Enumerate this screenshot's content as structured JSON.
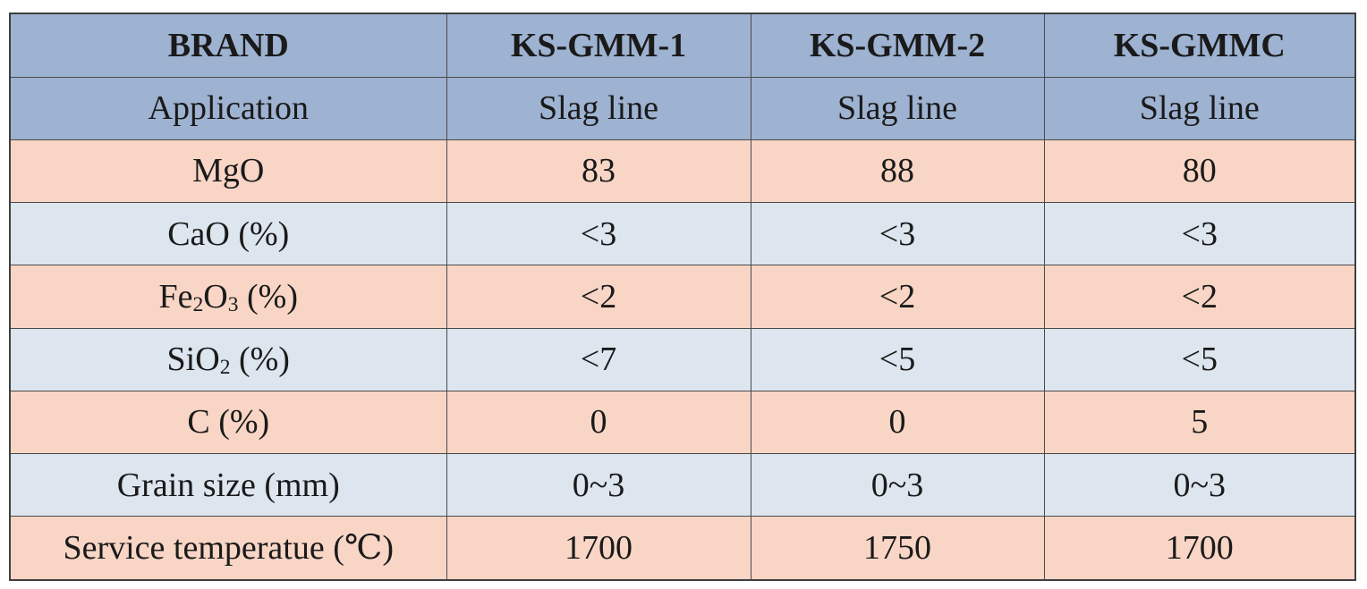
{
  "table": {
    "header": {
      "label": "BRAND",
      "brands": [
        "KS-GMM-1",
        "KS-GMM-2",
        "KS-GMMC"
      ]
    },
    "rows": [
      {
        "label": "Application",
        "values": [
          "Slag line",
          "Slag line",
          "Slag line"
        ],
        "shade": "blue"
      },
      {
        "label": "MgO",
        "values": [
          "83",
          "88",
          "80"
        ],
        "shade": "pink"
      },
      {
        "label": "CaO (%)",
        "values": [
          "<3",
          "<3",
          "<3"
        ],
        "shade": "light"
      },
      {
        "label_prefix": "Fe",
        "label_sub1": "2",
        "label_mid": "O",
        "label_sub2": "3",
        "label_suffix": " (%)",
        "values": [
          "<2",
          "<2",
          "<2"
        ],
        "shade": "pink"
      },
      {
        "label_prefix": "SiO",
        "label_sub1": "2",
        "label_suffix": " (%)",
        "values": [
          "<7",
          "<5",
          "<5"
        ],
        "shade": "light"
      },
      {
        "label": "C (%)",
        "values": [
          "0",
          "0",
          "5"
        ],
        "shade": "pink"
      },
      {
        "label": "Grain size (mm)",
        "values": [
          "0~3",
          "0~3",
          "0~3"
        ],
        "shade": "light"
      },
      {
        "label": "Service temperatue (℃)",
        "values": [
          "1700",
          "1750",
          "1700"
        ],
        "shade": "pink"
      }
    ]
  },
  "colors": {
    "header_blue": "#9eb2d1",
    "row_pink": "#f8d5c5",
    "row_light_blue": "#dde5ef",
    "border": "#4a4a4a"
  }
}
